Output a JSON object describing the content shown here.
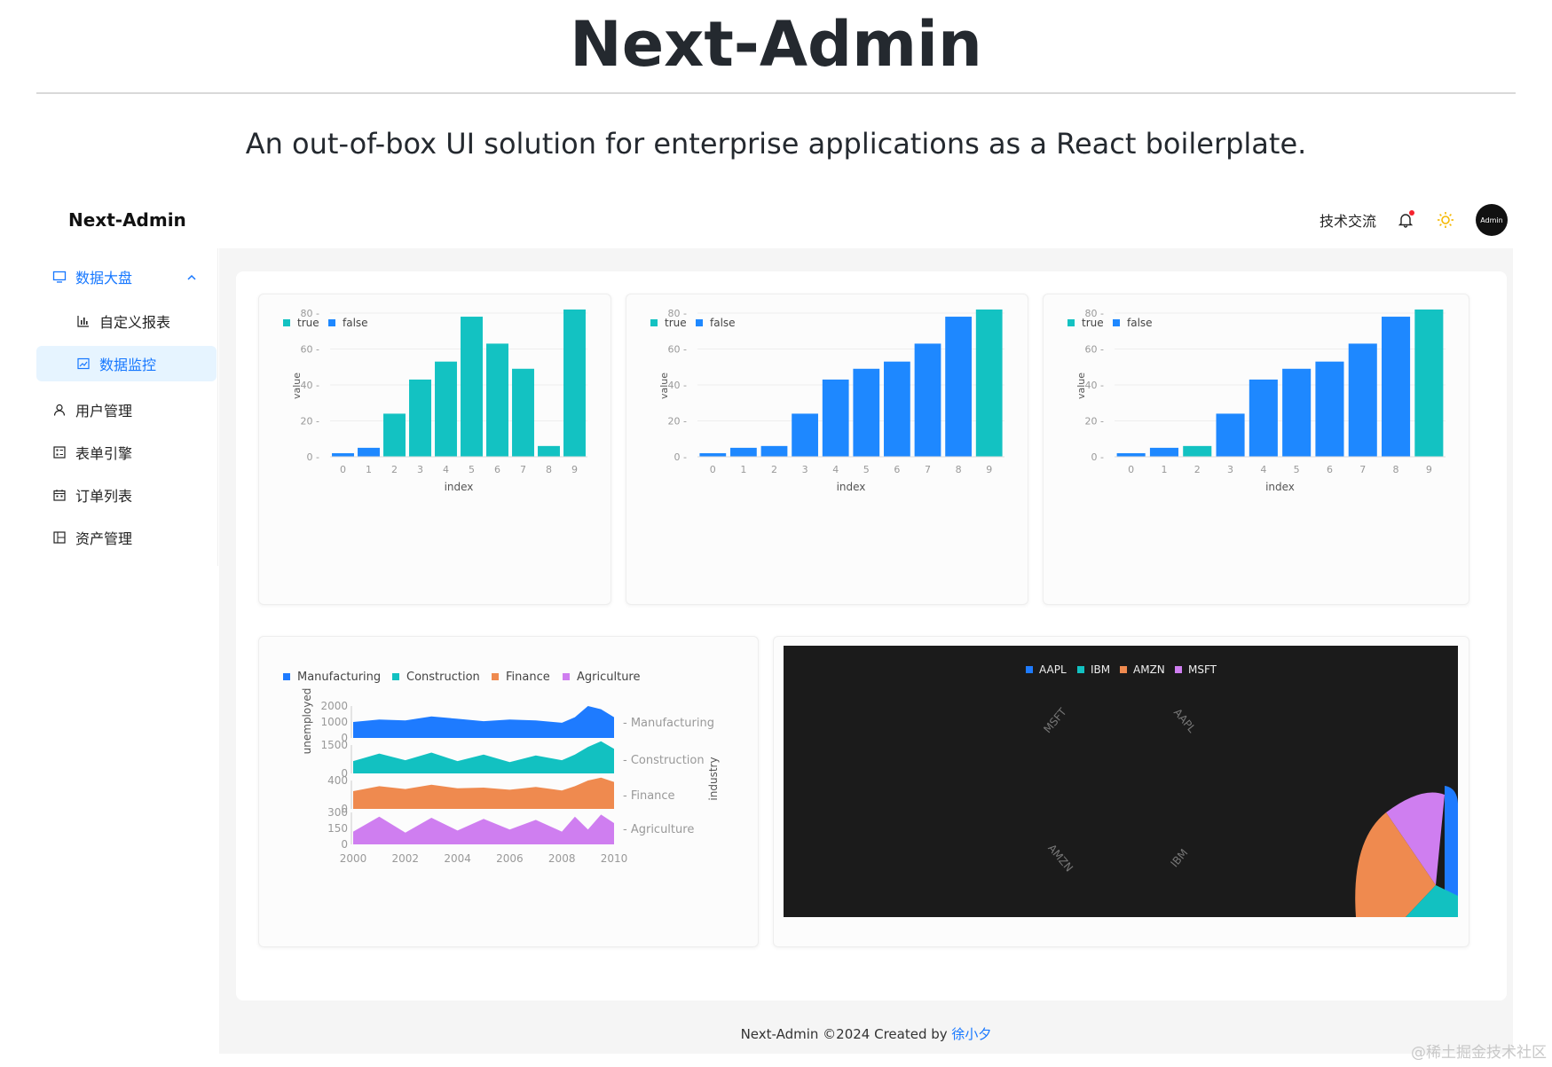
{
  "hero": {
    "title": "Next-Admin",
    "subtitle": "An out-of-box UI solution for enterprise applications as a React boilerplate."
  },
  "header": {
    "brand": "Next-Admin",
    "tech_link": "技术交流",
    "avatar_label": "Admin",
    "icons": [
      "bell-icon",
      "sun-icon"
    ]
  },
  "sidebar": {
    "items": [
      {
        "label": "数据大盘",
        "icon": "monitor-icon",
        "expanded": true
      },
      {
        "label": "自定义报表",
        "icon": "bar-chart-icon"
      },
      {
        "label": "数据监控",
        "icon": "line-chart-icon",
        "selected": true
      },
      {
        "label": "用户管理",
        "icon": "user-icon"
      },
      {
        "label": "表单引擎",
        "icon": "form-icon"
      },
      {
        "label": "订单列表",
        "icon": "calendar-icon"
      },
      {
        "label": "资产管理",
        "icon": "asset-icon"
      }
    ]
  },
  "footer": {
    "text": "Next-Admin ©2024 Created by ",
    "author": "徐小夕"
  },
  "watermark": "@稀土掘金技术社区",
  "colors": {
    "primary": "#1677ff",
    "true": "#13c2c2",
    "false": "#1e88ff",
    "manufacturing": "#1e7bff",
    "construction": "#12c1c1",
    "finance": "#ef8a4f",
    "agriculture": "#cf7ef0"
  },
  "chart_data": [
    {
      "type": "bar",
      "legend": [
        "true",
        "false"
      ],
      "categories": [
        "0",
        "1",
        "2",
        "3",
        "4",
        "5",
        "6",
        "7",
        "8",
        "9"
      ],
      "values": [
        2,
        5,
        24,
        43,
        53,
        78,
        63,
        49,
        6,
        82
      ],
      "flags": [
        false,
        false,
        true,
        true,
        true,
        true,
        true,
        true,
        true,
        true
      ],
      "xlabel": "index",
      "ylabel": "value",
      "ylim": [
        0,
        80
      ],
      "yticks": [
        0,
        20,
        40,
        60,
        80
      ]
    },
    {
      "type": "bar",
      "legend": [
        "true",
        "false"
      ],
      "categories": [
        "0",
        "1",
        "2",
        "3",
        "4",
        "5",
        "6",
        "7",
        "8",
        "9"
      ],
      "values": [
        2,
        5,
        6,
        24,
        43,
        49,
        53,
        63,
        78,
        82
      ],
      "flags": [
        false,
        false,
        false,
        false,
        false,
        false,
        false,
        false,
        false,
        true
      ],
      "xlabel": "index",
      "ylabel": "value",
      "ylim": [
        0,
        80
      ],
      "yticks": [
        0,
        20,
        40,
        60,
        80
      ]
    },
    {
      "type": "bar",
      "legend": [
        "true",
        "false"
      ],
      "categories": [
        "0",
        "1",
        "2",
        "3",
        "4",
        "5",
        "6",
        "7",
        "8",
        "9"
      ],
      "values": [
        2,
        5,
        6,
        24,
        43,
        49,
        53,
        63,
        78,
        82
      ],
      "flags": [
        false,
        false,
        true,
        false,
        false,
        false,
        false,
        false,
        false,
        true
      ],
      "xlabel": "index",
      "ylabel": "value",
      "ylim": [
        0,
        80
      ],
      "yticks": [
        0,
        20,
        40,
        60,
        80
      ]
    },
    {
      "type": "area",
      "legend": [
        "Manufacturing",
        "Construction",
        "Finance",
        "Agriculture"
      ],
      "x_ticks": [
        "2000",
        "2002",
        "2004",
        "2006",
        "2008",
        "2010"
      ],
      "xlim": [
        2000,
        2010
      ],
      "ylabel": "unemployed",
      "row_label": "industry",
      "series": [
        {
          "name": "Manufacturing",
          "yticks": [
            "2000",
            "1000",
            "0"
          ],
          "ymax": 2000,
          "x": [
            2000,
            2001,
            2002,
            2003,
            2004,
            2005,
            2006,
            2007,
            2008,
            2008.5,
            2009,
            2009.5,
            2010
          ],
          "values": [
            1000,
            1150,
            1100,
            1350,
            1200,
            1050,
            1150,
            1100,
            950,
            1300,
            2000,
            1800,
            1300
          ]
        },
        {
          "name": "Construction",
          "yticks": [
            "1500",
            "0"
          ],
          "ymax": 1500,
          "x": [
            2000,
            2001,
            2002,
            2003,
            2004,
            2005,
            2006,
            2007,
            2008,
            2008.5,
            2009,
            2009.5,
            2010
          ],
          "values": [
            650,
            1050,
            700,
            1100,
            650,
            1000,
            600,
            950,
            700,
            1000,
            1400,
            1700,
            1300
          ]
        },
        {
          "name": "Finance",
          "yticks": [
            "400",
            "0"
          ],
          "ymax": 400,
          "x": [
            2000,
            2001,
            2002,
            2003,
            2004,
            2005,
            2006,
            2007,
            2008,
            2008.5,
            2009,
            2009.5,
            2010
          ],
          "values": [
            250,
            320,
            280,
            340,
            290,
            300,
            270,
            310,
            260,
            320,
            400,
            440,
            380
          ]
        },
        {
          "name": "Agriculture",
          "yticks": [
            "300",
            "150",
            "0"
          ],
          "ymax": 300,
          "x": [
            2000,
            2001,
            2002,
            2003,
            2004,
            2005,
            2006,
            2007,
            2008,
            2008.5,
            2009,
            2009.5,
            2010
          ],
          "values": [
            120,
            260,
            110,
            250,
            130,
            240,
            140,
            230,
            120,
            260,
            140,
            280,
            200
          ]
        }
      ]
    },
    {
      "type": "pie",
      "legend": [
        "AAPL",
        "IBM",
        "AMZN",
        "MSFT"
      ],
      "radial_labels": [
        "MSFT",
        "AAPL",
        "AMZN",
        "IBM"
      ],
      "background": "#1b1b1b",
      "colors": {
        "AAPL": "#1e7bff",
        "IBM": "#12c1c1",
        "AMZN": "#ef8a4f",
        "MSFT": "#cf7ef0"
      }
    }
  ]
}
